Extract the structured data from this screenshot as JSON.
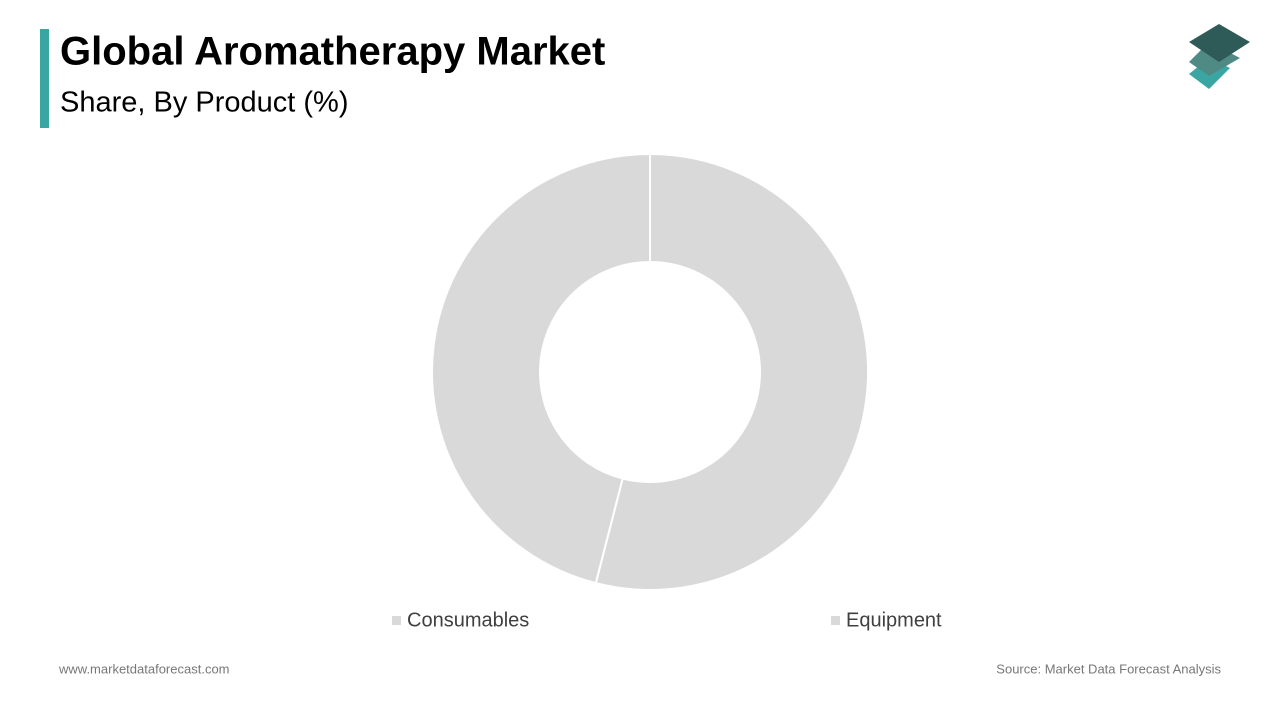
{
  "chart_data": {
    "type": "donut",
    "title": "Global Aromatherapy Market",
    "subtitle": "Share, By Product (%)",
    "categories": [
      "Consumables",
      "Equipment"
    ],
    "values": [
      54,
      46
    ],
    "colors": [
      "#d9d9d9",
      "#d9d9d9"
    ],
    "legend": "bottom"
  },
  "footer": {
    "website": "www.marketdataforecast.com",
    "source": "Source: Market Data Forecast Analysis"
  }
}
